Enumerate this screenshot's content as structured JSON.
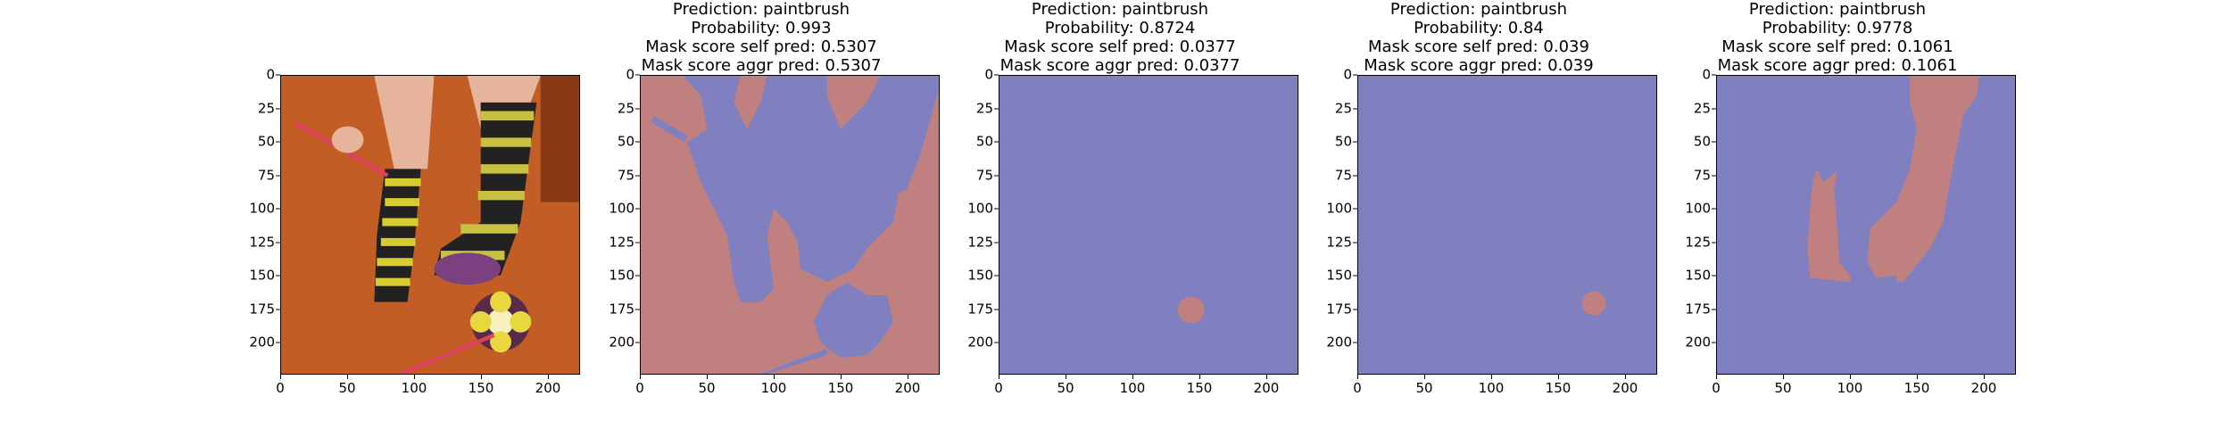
{
  "axis": {
    "yticks": [
      "0",
      "25",
      "50",
      "75",
      "100",
      "125",
      "150",
      "175",
      "200"
    ],
    "xticks": [
      "0",
      "50",
      "100",
      "150",
      "200"
    ]
  },
  "panels": [
    {
      "title": "",
      "subtitle_lines": []
    },
    {
      "title": "Prediction: paintbrush",
      "subtitle_lines": [
        "Probability: 0.993",
        "Mask score self pred: 0.5307",
        "Mask score aggr pred: 0.5307"
      ]
    },
    {
      "title": "Prediction: paintbrush",
      "subtitle_lines": [
        "Probability: 0.8724",
        "Mask score self pred: 0.0377",
        "Mask score aggr pred: 0.0377"
      ]
    },
    {
      "title": "Prediction: paintbrush",
      "subtitle_lines": [
        "Probability: 0.84",
        "Mask score self pred: 0.039",
        "Mask score aggr pred: 0.039"
      ]
    },
    {
      "title": "Prediction: paintbrush",
      "subtitle_lines": [
        "Probability: 0.9778",
        "Mask score self pred: 0.1061",
        "Mask score aggr pred: 0.1061"
      ]
    }
  ],
  "colors": {
    "mask_blue": "#8080c0",
    "mask_red": "#c08080",
    "floor": "#c8642a"
  }
}
